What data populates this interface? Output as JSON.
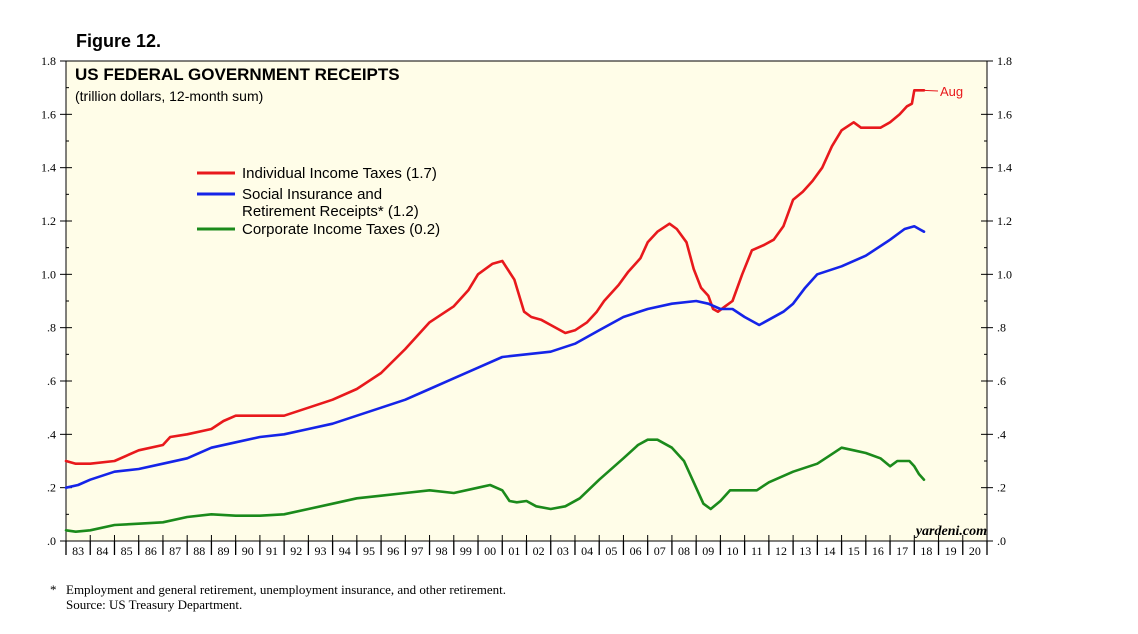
{
  "figure_label": "Figure 12.",
  "footnote": {
    "marker": "*",
    "text": "Employment and general retirement, unemployment insurance, and other retirement.",
    "source": "Source: US Treasury Department."
  },
  "chart_data": {
    "type": "line",
    "title": "US FEDERAL GOVERNMENT RECEIPTS",
    "subtitle": "(trillion dollars, 12-month sum)",
    "watermark": "yardeni.com",
    "end_label": "Aug",
    "xlim": [
      1983,
      2021
    ],
    "ylim": [
      0,
      1.8
    ],
    "y_ticks": [
      0,
      0.2,
      0.4,
      0.6,
      0.8,
      1.0,
      1.2,
      1.4,
      1.6,
      1.8
    ],
    "y_tick_labels": [
      ".0",
      ".2",
      ".4",
      ".6",
      ".8",
      "1.0",
      "1.2",
      "1.4",
      "1.6",
      "1.8"
    ],
    "x_tick_labels": [
      "83",
      "84",
      "85",
      "86",
      "87",
      "88",
      "89",
      "90",
      "91",
      "92",
      "93",
      "94",
      "95",
      "96",
      "97",
      "98",
      "99",
      "00",
      "01",
      "02",
      "03",
      "04",
      "05",
      "06",
      "07",
      "08",
      "09",
      "10",
      "11",
      "12",
      "13",
      "14",
      "15",
      "16",
      "17",
      "18",
      "19",
      "20"
    ],
    "colors": {
      "background": "#fffde8",
      "individual": "#e8191c",
      "social": "#1524e8",
      "corporate": "#1b8a1b"
    },
    "legend": [
      {
        "lines": [
          "Individual Income Taxes (1.7)"
        ],
        "color": "#e8191c"
      },
      {
        "lines": [
          "Social Insurance and",
          "Retirement Receipts* (1.2)"
        ],
        "color": "#1524e8"
      },
      {
        "lines": [
          "Corporate Income Taxes (0.2)"
        ],
        "color": "#1b8a1b"
      }
    ],
    "series": [
      {
        "name": "Individual Income Taxes",
        "color": "#e8191c",
        "points": [
          [
            1983.0,
            0.3
          ],
          [
            1983.4,
            0.29
          ],
          [
            1984.0,
            0.29
          ],
          [
            1985.0,
            0.3
          ],
          [
            1986.0,
            0.34
          ],
          [
            1987.0,
            0.36
          ],
          [
            1987.3,
            0.39
          ],
          [
            1988.0,
            0.4
          ],
          [
            1989.0,
            0.42
          ],
          [
            1989.5,
            0.45
          ],
          [
            1990.0,
            0.47
          ],
          [
            1991.0,
            0.47
          ],
          [
            1992.0,
            0.47
          ],
          [
            1993.0,
            0.5
          ],
          [
            1994.0,
            0.53
          ],
          [
            1995.0,
            0.57
          ],
          [
            1996.0,
            0.63
          ],
          [
            1997.0,
            0.72
          ],
          [
            1998.0,
            0.82
          ],
          [
            1999.0,
            0.88
          ],
          [
            1999.6,
            0.94
          ],
          [
            2000.0,
            1.0
          ],
          [
            2000.6,
            1.04
          ],
          [
            2001.0,
            1.05
          ],
          [
            2001.5,
            0.98
          ],
          [
            2001.9,
            0.86
          ],
          [
            2002.2,
            0.84
          ],
          [
            2002.6,
            0.83
          ],
          [
            2003.0,
            0.81
          ],
          [
            2003.6,
            0.78
          ],
          [
            2004.0,
            0.79
          ],
          [
            2004.5,
            0.82
          ],
          [
            2004.9,
            0.86
          ],
          [
            2005.2,
            0.9
          ],
          [
            2005.8,
            0.96
          ],
          [
            2006.2,
            1.01
          ],
          [
            2006.7,
            1.06
          ],
          [
            2007.0,
            1.12
          ],
          [
            2007.4,
            1.16
          ],
          [
            2007.9,
            1.19
          ],
          [
            2008.2,
            1.17
          ],
          [
            2008.6,
            1.12
          ],
          [
            2008.9,
            1.02
          ],
          [
            2009.2,
            0.95
          ],
          [
            2009.5,
            0.92
          ],
          [
            2009.7,
            0.87
          ],
          [
            2009.9,
            0.86
          ],
          [
            2010.2,
            0.88
          ],
          [
            2010.5,
            0.9
          ],
          [
            2010.9,
            1.0
          ],
          [
            2011.3,
            1.09
          ],
          [
            2011.8,
            1.11
          ],
          [
            2012.2,
            1.13
          ],
          [
            2012.6,
            1.18
          ],
          [
            2013.0,
            1.28
          ],
          [
            2013.4,
            1.31
          ],
          [
            2013.8,
            1.35
          ],
          [
            2014.2,
            1.4
          ],
          [
            2014.6,
            1.48
          ],
          [
            2015.0,
            1.54
          ],
          [
            2015.5,
            1.57
          ],
          [
            2015.8,
            1.55
          ],
          [
            2016.2,
            1.55
          ],
          [
            2016.6,
            1.55
          ],
          [
            2017.0,
            1.57
          ],
          [
            2017.4,
            1.6
          ],
          [
            2017.7,
            1.63
          ],
          [
            2017.9,
            1.64
          ],
          [
            2018.0,
            1.69
          ],
          [
            2018.2,
            1.69
          ],
          [
            2018.4,
            1.69
          ]
        ]
      },
      {
        "name": "Social Insurance and Retirement Receipts",
        "color": "#1524e8",
        "points": [
          [
            1983.0,
            0.2
          ],
          [
            1983.5,
            0.21
          ],
          [
            1984.0,
            0.23
          ],
          [
            1985.0,
            0.26
          ],
          [
            1986.0,
            0.27
          ],
          [
            1987.0,
            0.29
          ],
          [
            1988.0,
            0.31
          ],
          [
            1989.0,
            0.35
          ],
          [
            1990.0,
            0.37
          ],
          [
            1991.0,
            0.39
          ],
          [
            1992.0,
            0.4
          ],
          [
            1993.0,
            0.42
          ],
          [
            1994.0,
            0.44
          ],
          [
            1995.0,
            0.47
          ],
          [
            1996.0,
            0.5
          ],
          [
            1997.0,
            0.53
          ],
          [
            1998.0,
            0.57
          ],
          [
            1999.0,
            0.61
          ],
          [
            2000.0,
            0.65
          ],
          [
            2001.0,
            0.69
          ],
          [
            2002.0,
            0.7
          ],
          [
            2003.0,
            0.71
          ],
          [
            2004.0,
            0.74
          ],
          [
            2005.0,
            0.79
          ],
          [
            2006.0,
            0.84
          ],
          [
            2007.0,
            0.87
          ],
          [
            2008.0,
            0.89
          ],
          [
            2009.0,
            0.9
          ],
          [
            2009.5,
            0.89
          ],
          [
            2010.0,
            0.87
          ],
          [
            2010.5,
            0.87
          ],
          [
            2011.0,
            0.84
          ],
          [
            2011.6,
            0.81
          ],
          [
            2012.0,
            0.83
          ],
          [
            2012.6,
            0.86
          ],
          [
            2013.0,
            0.89
          ],
          [
            2013.5,
            0.95
          ],
          [
            2014.0,
            1.0
          ],
          [
            2015.0,
            1.03
          ],
          [
            2016.0,
            1.07
          ],
          [
            2017.0,
            1.13
          ],
          [
            2017.6,
            1.17
          ],
          [
            2018.0,
            1.18
          ],
          [
            2018.2,
            1.17
          ],
          [
            2018.4,
            1.16
          ]
        ]
      },
      {
        "name": "Corporate Income Taxes",
        "color": "#1b8a1b",
        "points": [
          [
            1983.0,
            0.04
          ],
          [
            1983.4,
            0.035
          ],
          [
            1984.0,
            0.04
          ],
          [
            1985.0,
            0.06
          ],
          [
            1986.0,
            0.065
          ],
          [
            1987.0,
            0.07
          ],
          [
            1988.0,
            0.09
          ],
          [
            1989.0,
            0.1
          ],
          [
            1990.0,
            0.095
          ],
          [
            1991.0,
            0.095
          ],
          [
            1992.0,
            0.1
          ],
          [
            1993.0,
            0.12
          ],
          [
            1994.0,
            0.14
          ],
          [
            1995.0,
            0.16
          ],
          [
            1996.0,
            0.17
          ],
          [
            1997.0,
            0.18
          ],
          [
            1998.0,
            0.19
          ],
          [
            1999.0,
            0.18
          ],
          [
            2000.0,
            0.2
          ],
          [
            2000.5,
            0.21
          ],
          [
            2001.0,
            0.19
          ],
          [
            2001.3,
            0.15
          ],
          [
            2001.6,
            0.145
          ],
          [
            2002.0,
            0.15
          ],
          [
            2002.4,
            0.13
          ],
          [
            2003.0,
            0.12
          ],
          [
            2003.6,
            0.13
          ],
          [
            2004.2,
            0.16
          ],
          [
            2005.0,
            0.23
          ],
          [
            2006.0,
            0.31
          ],
          [
            2006.6,
            0.36
          ],
          [
            2007.0,
            0.38
          ],
          [
            2007.4,
            0.38
          ],
          [
            2008.0,
            0.35
          ],
          [
            2008.5,
            0.3
          ],
          [
            2008.9,
            0.22
          ],
          [
            2009.3,
            0.14
          ],
          [
            2009.6,
            0.12
          ],
          [
            2010.0,
            0.15
          ],
          [
            2010.4,
            0.19
          ],
          [
            2011.0,
            0.19
          ],
          [
            2011.5,
            0.19
          ],
          [
            2012.0,
            0.22
          ],
          [
            2013.0,
            0.26
          ],
          [
            2014.0,
            0.29
          ],
          [
            2014.5,
            0.32
          ],
          [
            2015.0,
            0.35
          ],
          [
            2015.5,
            0.34
          ],
          [
            2016.0,
            0.33
          ],
          [
            2016.6,
            0.31
          ],
          [
            2017.0,
            0.28
          ],
          [
            2017.3,
            0.3
          ],
          [
            2017.8,
            0.3
          ],
          [
            2018.0,
            0.28
          ],
          [
            2018.2,
            0.25
          ],
          [
            2018.4,
            0.23
          ]
        ]
      }
    ]
  }
}
